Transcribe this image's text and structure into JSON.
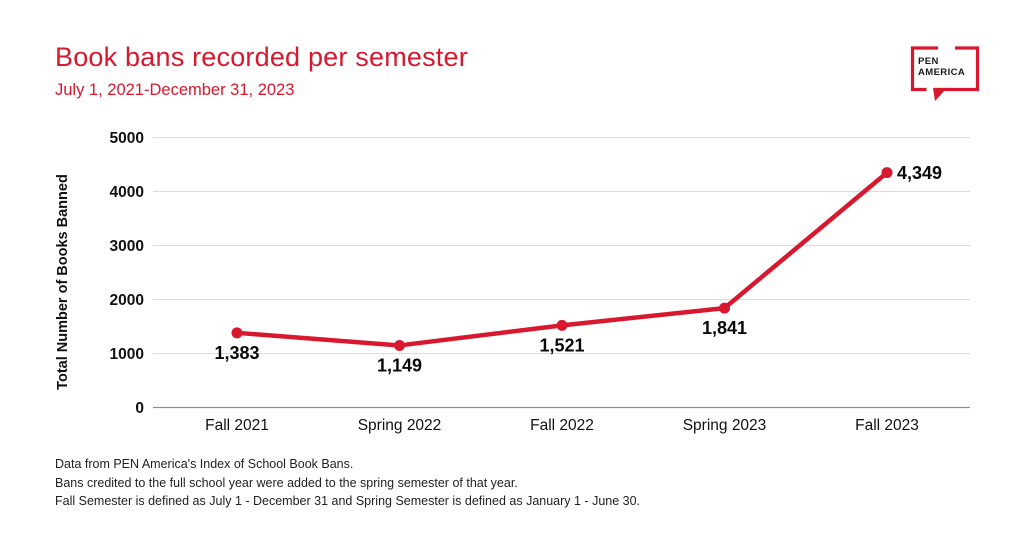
{
  "header": {
    "title": "Book bans recorded per semester",
    "subtitle": "July 1, 2021-December 31, 2023",
    "accent_color": "#d7182e"
  },
  "logo": {
    "line1": "PEN",
    "line2": "AMERICA",
    "bubble_color": "#d7182e",
    "text_color": "#1a1a1a"
  },
  "chart_data": {
    "type": "line",
    "title": "Book bans recorded per semester",
    "subtitle": "July 1, 2021-December 31, 2023",
    "categories": [
      "Fall 2021",
      "Spring 2022",
      "Fall 2022",
      "Spring 2023",
      "Fall 2023"
    ],
    "values": [
      1383,
      1149,
      1521,
      1841,
      4349
    ],
    "value_labels": [
      "1,383",
      "1,149",
      "1,521",
      "1,841",
      "4,349"
    ],
    "label_positions": [
      "below",
      "below",
      "below",
      "below",
      "right"
    ],
    "xlabel": "",
    "ylabel": "Total Number of Books Banned",
    "ylim": [
      0,
      5000
    ],
    "yticks": [
      0,
      1000,
      2000,
      3000,
      4000,
      5000
    ],
    "grid": true,
    "legend": "none",
    "line_color": "#d7182e",
    "point_color": "#d7182e",
    "gridline_color": "#dcdcdc",
    "axis_line_color": "#8f8f8f"
  },
  "footnotes": [
    "Data from PEN America's Index of School Book Bans.",
    "Bans credited to the full school year were added to the spring semester of that year.",
    "Fall Semester is defined as July 1 - December 31 and Spring Semester is defined as January 1 - June 30."
  ]
}
